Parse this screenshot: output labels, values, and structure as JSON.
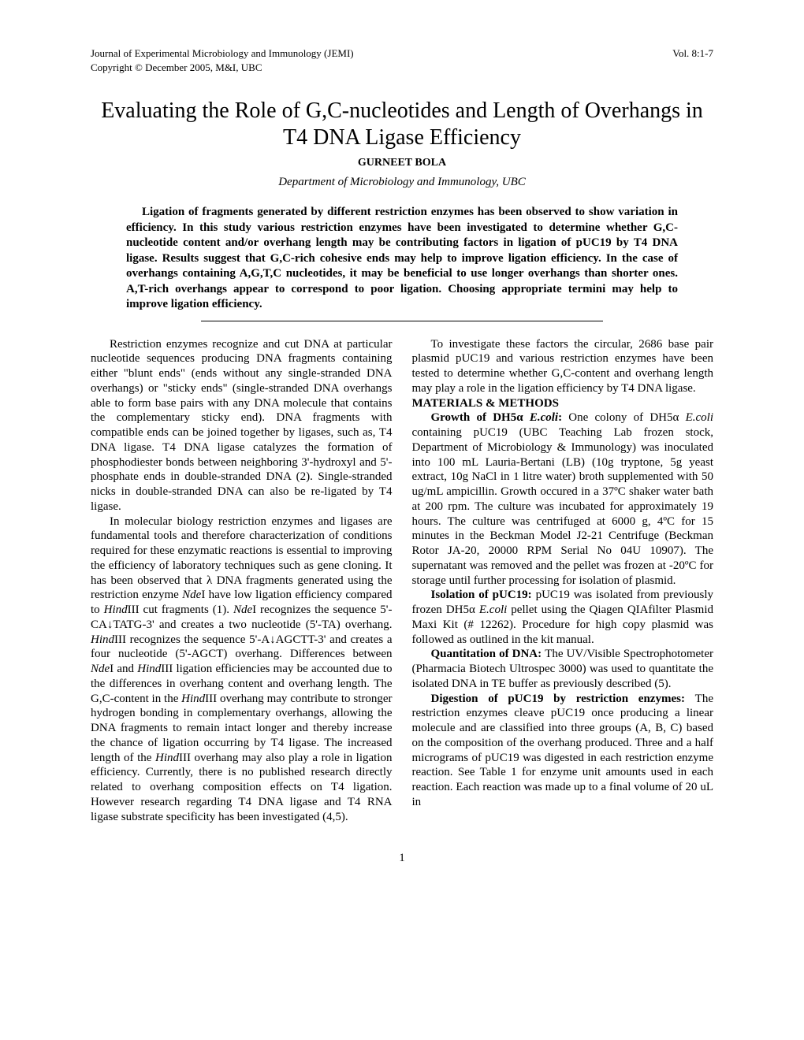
{
  "header": {
    "journal": "Journal of Experimental Microbiology and Immunology (JEMI)",
    "volume": "Vol. 8:1-7",
    "copyright": "Copyright © December 2005, M&I, UBC"
  },
  "title": "Evaluating the Role of G,C-nucleotides and Length of Overhangs in T4 DNA Ligase Efficiency",
  "author": "GURNEET BOLA",
  "affiliation": "Department of Microbiology and Immunology, UBC",
  "abstract": "Ligation of fragments generated by different restriction enzymes has been observed to show variation in efficiency. In this study various restriction enzymes have been investigated to determine whether G,C-nucleotide content and/or overhang length may be contributing factors in ligation of pUC19 by T4 DNA ligase. Results suggest that G,C-rich cohesive ends may help to improve ligation efficiency. In the case of overhangs containing A,G,T,C nucleotides, it may be beneficial to use longer overhangs than shorter ones. A,T-rich overhangs appear to correspond to poor ligation. Choosing appropriate termini may help to improve ligation efficiency.",
  "col1": {
    "p1": "Restriction enzymes recognize and cut DNA at particular nucleotide sequences producing DNA fragments containing either \"blunt ends\" (ends without any single-stranded DNA overhangs) or \"sticky ends\" (single-stranded DNA overhangs able to form base pairs with any DNA molecule that contains the complementary sticky end). DNA fragments with compatible ends can be joined together by ligases, such as, T4 DNA ligase. T4 DNA ligase catalyzes the formation of phosphodiester bonds between neighboring 3'-hydroxyl and 5'-phosphate ends in double-stranded DNA (2). Single-stranded nicks in double-stranded DNA can also be re-ligated by T4 ligase.",
    "p2a": "In molecular biology restriction enzymes and ligases are fundamental tools and therefore characterization of conditions required for these enzymatic reactions is essential to improving the efficiency of laboratory techniques such as gene cloning. It has been observed that λ DNA fragments generated using the restriction enzyme ",
    "p2b": "I have low ligation efficiency compared to ",
    "p2c": "III cut fragments (1). ",
    "p2d": "I recognizes the sequence 5'-CA↓TATG-3' and creates a two nucleotide (5'-TA) overhang. ",
    "p2e": "III recognizes the sequence 5'-A↓AGCTT-3' and creates a four nucleotide (5'-AGCT) overhang. Differences between ",
    "p2f": "I and ",
    "p2g": "III ligation efficiencies may be accounted due to the differences in overhang content and overhang length. The G,C-content in the ",
    "p2h": "III overhang may contribute to stronger hydrogen bonding in complementary overhangs, allowing the DNA fragments to remain intact longer and thereby increase the chance of ligation occurring by T4 ligase. The increased length of the ",
    "p2i": "III overhang may also play a role in ligation efficiency. Currently, there is no published research directly related to overhang composition effects on T4 ligation. However research regarding T4 DNA ligase and T4 RNA ligase substrate specificity has been investigated (4,5).",
    "nde": "Nde",
    "hind": "Hind"
  },
  "col2": {
    "p1": "To investigate these factors the circular, 2686 base pair plasmid pUC19 and various restriction enzymes have been tested to determine whether G,C-content and overhang length may play a role in the ligation efficiency by T4 DNA ligase.",
    "materials_heading": "MATERIALS & METHODS",
    "m1_head": "Growth of DH5α ",
    "m1_ecoli": "E.coli",
    "m1_colon": ": ",
    "m1_body": "One colony of DH5α ",
    "m1_body2": " containing pUC19 (UBC Teaching Lab frozen stock, Department of Microbiology & Immunology) was inoculated into 100 mL Lauria-Bertani (LB) (10g tryptone, 5g yeast extract, 10g NaCl in 1 litre water) broth supplemented with 50 ug/mL ampicillin. Growth occured in a 37ºC shaker water bath at 200 rpm. The culture was incubated for approximately 19 hours. The culture was centrifuged at 6000 g, 4ºC for 15 minutes in the Beckman Model J2-21 Centrifuge (Beckman Rotor JA-20, 20000 RPM Serial No 04U 10907). The supernatant was removed and the pellet was frozen at -20ºC for storage until further processing for isolation of plasmid.",
    "m2_head": "Isolation of pUC19: ",
    "m2_body1": "pUC19 was isolated from previously frozen DH5α ",
    "m2_body2": " pellet using the Qiagen QIAfilter Plasmid Maxi Kit (# 12262). Procedure for high copy plasmid was followed as outlined in the kit manual.",
    "m3_head": "Quantitation of DNA: ",
    "m3_body": "The UV/Visible Spectrophotometer (Pharmacia Biotech Ultrospec 3000) was used to quantitate the isolated DNA in TE buffer as previously described (5).",
    "m4_head": "Digestion of pUC19 by restriction enzymes: ",
    "m4_body": "The restriction enzymes cleave pUC19 once producing a linear molecule and are classified into three groups (A, B, C) based on the composition of the overhang produced. Three and a half micrograms of pUC19 was digested in each restriction enzyme reaction. See Table 1 for enzyme unit amounts used in each reaction. Each reaction was made up to a final volume of 20 uL in"
  },
  "page_number": "1"
}
